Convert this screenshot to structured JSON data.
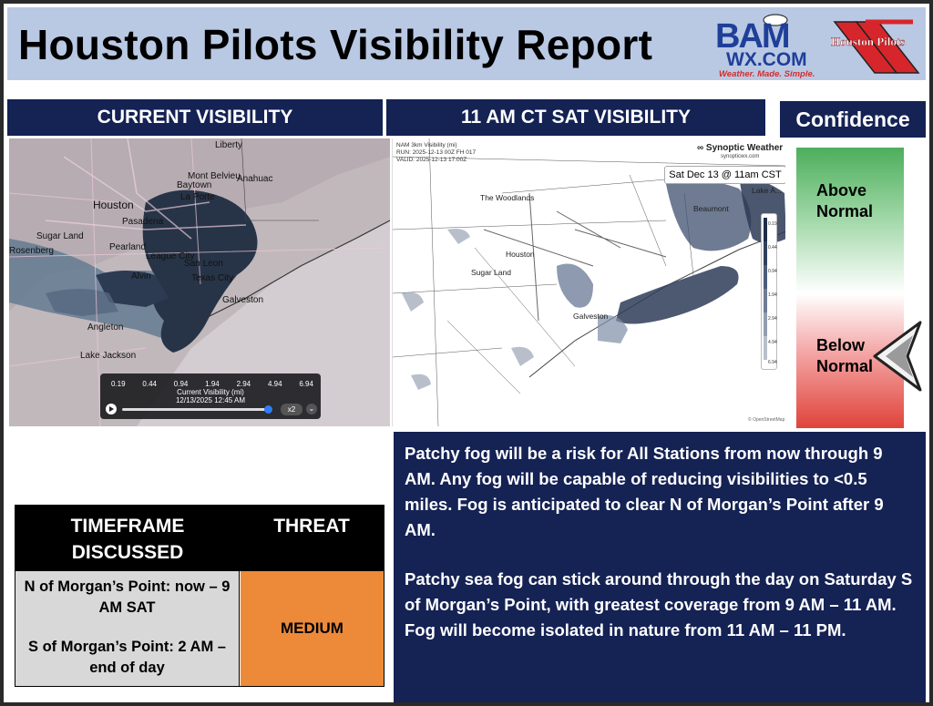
{
  "header": {
    "title": "Houston Pilots Visibility Report",
    "bam_logo": {
      "line1": "BAM",
      "line2": "WX.COM",
      "tagline": "Weather. Made. Simple."
    },
    "pilots_logo_text": "Houston Pilots"
  },
  "banners": {
    "current": "CURRENT VISIBILITY",
    "forecast": "11 AM CT SAT VISIBILITY",
    "confidence": "Confidence"
  },
  "confidence": {
    "above_line1": "Above",
    "above_line2": "Normal",
    "below_line1": "Below",
    "below_line2": "Normal",
    "selected": "Below Normal"
  },
  "current_map": {
    "places": [
      "Liberty",
      "Mont Belvieu",
      "Baytown",
      "La Porte",
      "Anahuac",
      "Houston",
      "Pasadena",
      "Sugar Land",
      "Pearland",
      "League City",
      "San Leon",
      "Texas City",
      "Alvin",
      "Galveston",
      "Rosenberg",
      "Angleton",
      "Lake Jackson"
    ],
    "legend": {
      "ticks": [
        "0.19",
        "0.44",
        "0.94",
        "1.94",
        "2.94",
        "4.94",
        "6.94"
      ],
      "caption": "Current Visibility (mi)",
      "time": "12/13/2025 12:45 AM",
      "speed": "x2",
      "menu": "⌄"
    }
  },
  "forecast_map": {
    "model_title": "NAM 3km Visibility (mi)",
    "run": "RUN: 2025-12-13 00Z FH 017",
    "valid": "VALID: 2025-12-13 17:00Z",
    "brand": "∞ Synoptic Weather",
    "brand_sub": "synopticwx.com",
    "date_box": "Sat Dec 13 @ 11am CST",
    "places": [
      "The Woodlands",
      "Beaumont",
      "Lake A...",
      "Houston",
      "Sugar Land",
      "Galveston"
    ],
    "scale_ticks": [
      "0.19",
      "0.44",
      "0.94",
      "1.94",
      "2.94",
      "4.94",
      "6.94"
    ],
    "credit": "© OpenStreetMap"
  },
  "discussion": {
    "para1": "Patchy fog will be a risk for All Stations from now through 9 AM. Any fog will be capable of reducing visibilities to <0.5 miles. Fog is anticipated to clear N of Morgan’s Point after 9 AM.",
    "para2": "Patchy sea fog can stick around through the day on Saturday S of Morgan’s Point, with greatest coverage from 9 AM – 11 AM. Fog will become isolated in nature from 11 AM – 11 PM."
  },
  "threat_table": {
    "col1_header": "TIMEFRAME DISCUSSED",
    "col2_header": "THREAT",
    "timeframe_1": "N of Morgan’s Point: now – 9 AM SAT",
    "timeframe_2": "S of Morgan’s Point: 2 AM – end of day",
    "threat": "MEDIUM"
  },
  "colors": {
    "navy": "#142254",
    "header_bg": "#b9c9e4",
    "threat_orange": "#ed8a3a",
    "table_gray": "#d8d8d8",
    "confidence_green": "#4dae5c",
    "confidence_red": "#e0433a"
  }
}
